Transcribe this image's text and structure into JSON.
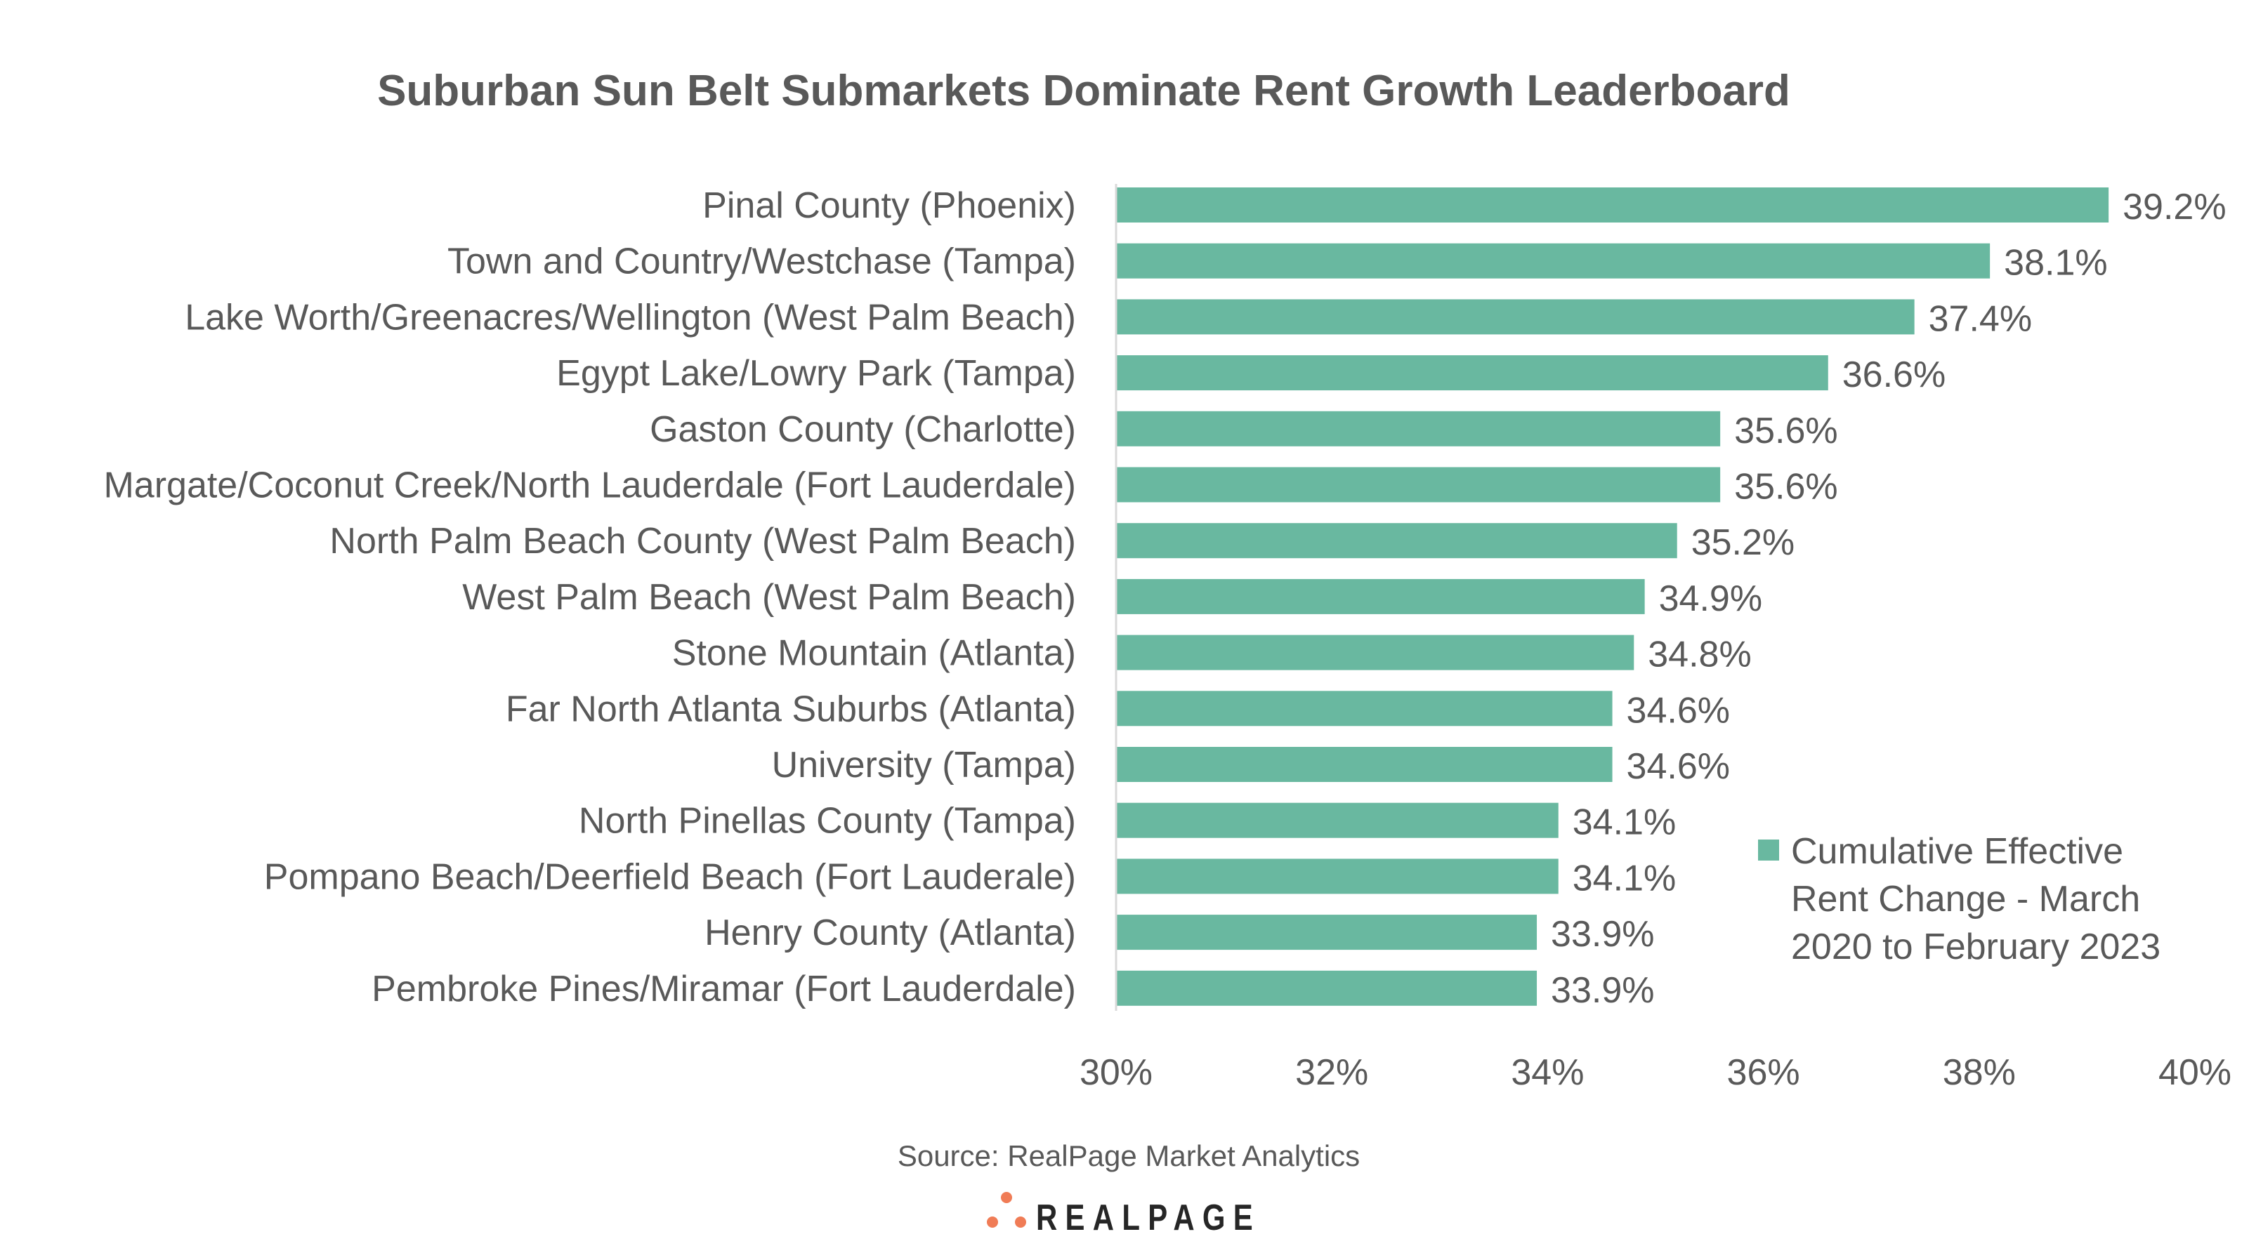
{
  "chart_data": {
    "type": "bar",
    "orientation": "horizontal",
    "title": "Suburban Sun Belt Submarkets Dominate Rent Growth Leaderboard",
    "categories": [
      "Pinal County (Phoenix)",
      "Town and Country/Westchase (Tampa)",
      "Lake Worth/Greenacres/Wellington (West Palm Beach)",
      "Egypt Lake/Lowry Park (Tampa)",
      "Gaston County (Charlotte)",
      "Margate/Coconut Creek/North Lauderdale (Fort Lauderdale)",
      "North Palm Beach County (West Palm Beach)",
      "West Palm Beach (West Palm Beach)",
      "Stone Mountain (Atlanta)",
      "Far North Atlanta Suburbs (Atlanta)",
      "University (Tampa)",
      "North Pinellas County (Tampa)",
      "Pompano Beach/Deerfield Beach (Fort Lauderale)",
      "Henry County (Atlanta)",
      "Pembroke Pines/Miramar (Fort Lauderdale)"
    ],
    "values": [
      39.2,
      38.1,
      37.4,
      36.6,
      35.6,
      35.6,
      35.2,
      34.9,
      34.8,
      34.6,
      34.6,
      34.1,
      34.1,
      33.9,
      33.9
    ],
    "value_labels": [
      "39.2%",
      "38.1%",
      "37.4%",
      "36.6%",
      "35.6%",
      "35.6%",
      "35.2%",
      "34.9%",
      "34.8%",
      "34.6%",
      "34.6%",
      "34.1%",
      "34.1%",
      "33.9%",
      "33.9%"
    ],
    "series_name_lines": [
      "Cumulative Effective",
      "Rent Change - March",
      "2020 to February 2023"
    ],
    "xlim": [
      30,
      40
    ],
    "xticks": [
      30,
      32,
      34,
      36,
      38,
      40
    ],
    "xtick_labels": [
      "30%",
      "32%",
      "34%",
      "36%",
      "38%",
      "40%"
    ],
    "xlabel": "",
    "ylabel": "",
    "grid": false,
    "legend_position": "right",
    "bar_color": "#69B8A0"
  },
  "source": "Source: RealPage Market Analytics",
  "logo": {
    "text": "REALPAGE",
    "dot_color": "#F07C56"
  }
}
